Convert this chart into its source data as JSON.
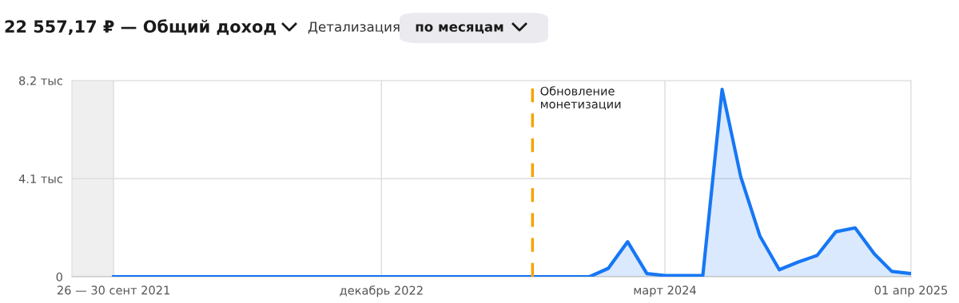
{
  "chart_data": {
    "type": "area",
    "title": "22 557,17 ₽ — Общий доход",
    "annotations": [
      "Детализация",
      "по месяцам"
    ],
    "x": [
      "2021-09-26",
      "2023-10-01",
      "2023-11-01",
      "2023-12-01",
      "2024-01-01",
      "2024-02-01",
      "2024-03-01",
      "2024-04-01",
      "2024-05-01",
      "2024-06-01",
      "2024-07-01",
      "2024-08-01",
      "2024-09-01",
      "2024-10-01",
      "2024-11-01",
      "2024-12-01",
      "2025-01-01",
      "2025-02-01",
      "2025-03-01",
      "2025-04-01"
    ],
    "series": [
      {
        "color": "#1677f5",
        "values": [
          0,
          0,
          0,
          0.35,
          1.46,
          0.13,
          0.05,
          0.05,
          0.05,
          7.83,
          4.18,
          1.69,
          0.29,
          0.61,
          0.89,
          1.88,
          2.04,
          0.95,
          0.22,
          0.13
        ]
      }
    ],
    "xlim": [
      "2021-07-21",
      "2025-04-01"
    ],
    "xticks": [
      {
        "value": "2021-09-26",
        "label": "26 — 30 сент 2021"
      },
      {
        "value": "2022-12-01",
        "label": "декабрь 2022"
      },
      {
        "value": "2024-03-01",
        "label": "март 2024"
      },
      {
        "value": "2025-04-01",
        "label": "01 апр 2025"
      }
    ],
    "ylim": [
      0,
      8.2
    ],
    "yticks": [
      0,
      {
        "value": 4.1,
        "label": "4.1 тыс"
      },
      {
        "value": 8.2,
        "label": "8.2 тыс"
      }
    ],
    "ref_lines": [
      {
        "axis": "x",
        "value": "2023-08-01",
        "label": "Обновление\nмонетизации",
        "color": "#f5a300",
        "line_style": "dashed"
      }
    ],
    "bands": [
      {
        "axis": "x",
        "from": "2021-07-21",
        "to": "2021-09-26",
        "color": "#efefef"
      }
    ],
    "grid": true,
    "legend": false,
    "marker": "none",
    "line_style": "solid"
  }
}
